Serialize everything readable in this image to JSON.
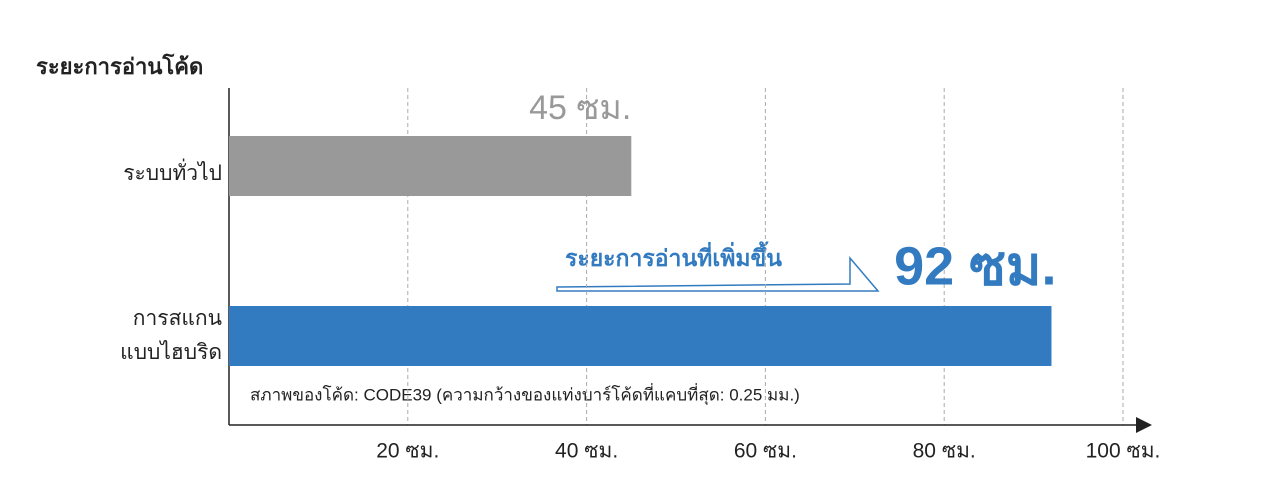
{
  "chart_data": {
    "type": "barh",
    "axis_title": "ระยะการอ่านโค้ด",
    "categories": [
      "ระบบทั่วไป",
      "การสแกน\nแบบไฮบริด"
    ],
    "values": [
      45,
      92
    ],
    "value_labels": [
      "45 ซม.",
      "92 ซม."
    ],
    "colors": [
      "#999999",
      "#337bc0"
    ],
    "value_label_colors": [
      "#999999",
      "#337bc0"
    ],
    "xlim": [
      0,
      100
    ],
    "xticks": [
      {
        "value": 20,
        "label": "20 ซม."
      },
      {
        "value": 40,
        "label": "40 ซม."
      },
      {
        "value": 60,
        "label": "60 ซม."
      },
      {
        "value": 80,
        "label": "80 ซม."
      },
      {
        "value": 100,
        "label": "100 ซม."
      }
    ],
    "grid": true,
    "annotation": "ระยะการอ่านที่เพิ่มขึ้น",
    "note": "สภาพของโค้ด: CODE39 (ความกว้างของแท่งบาร์โค้ดที่แคบที่สุด: 0.25 มม.)"
  }
}
